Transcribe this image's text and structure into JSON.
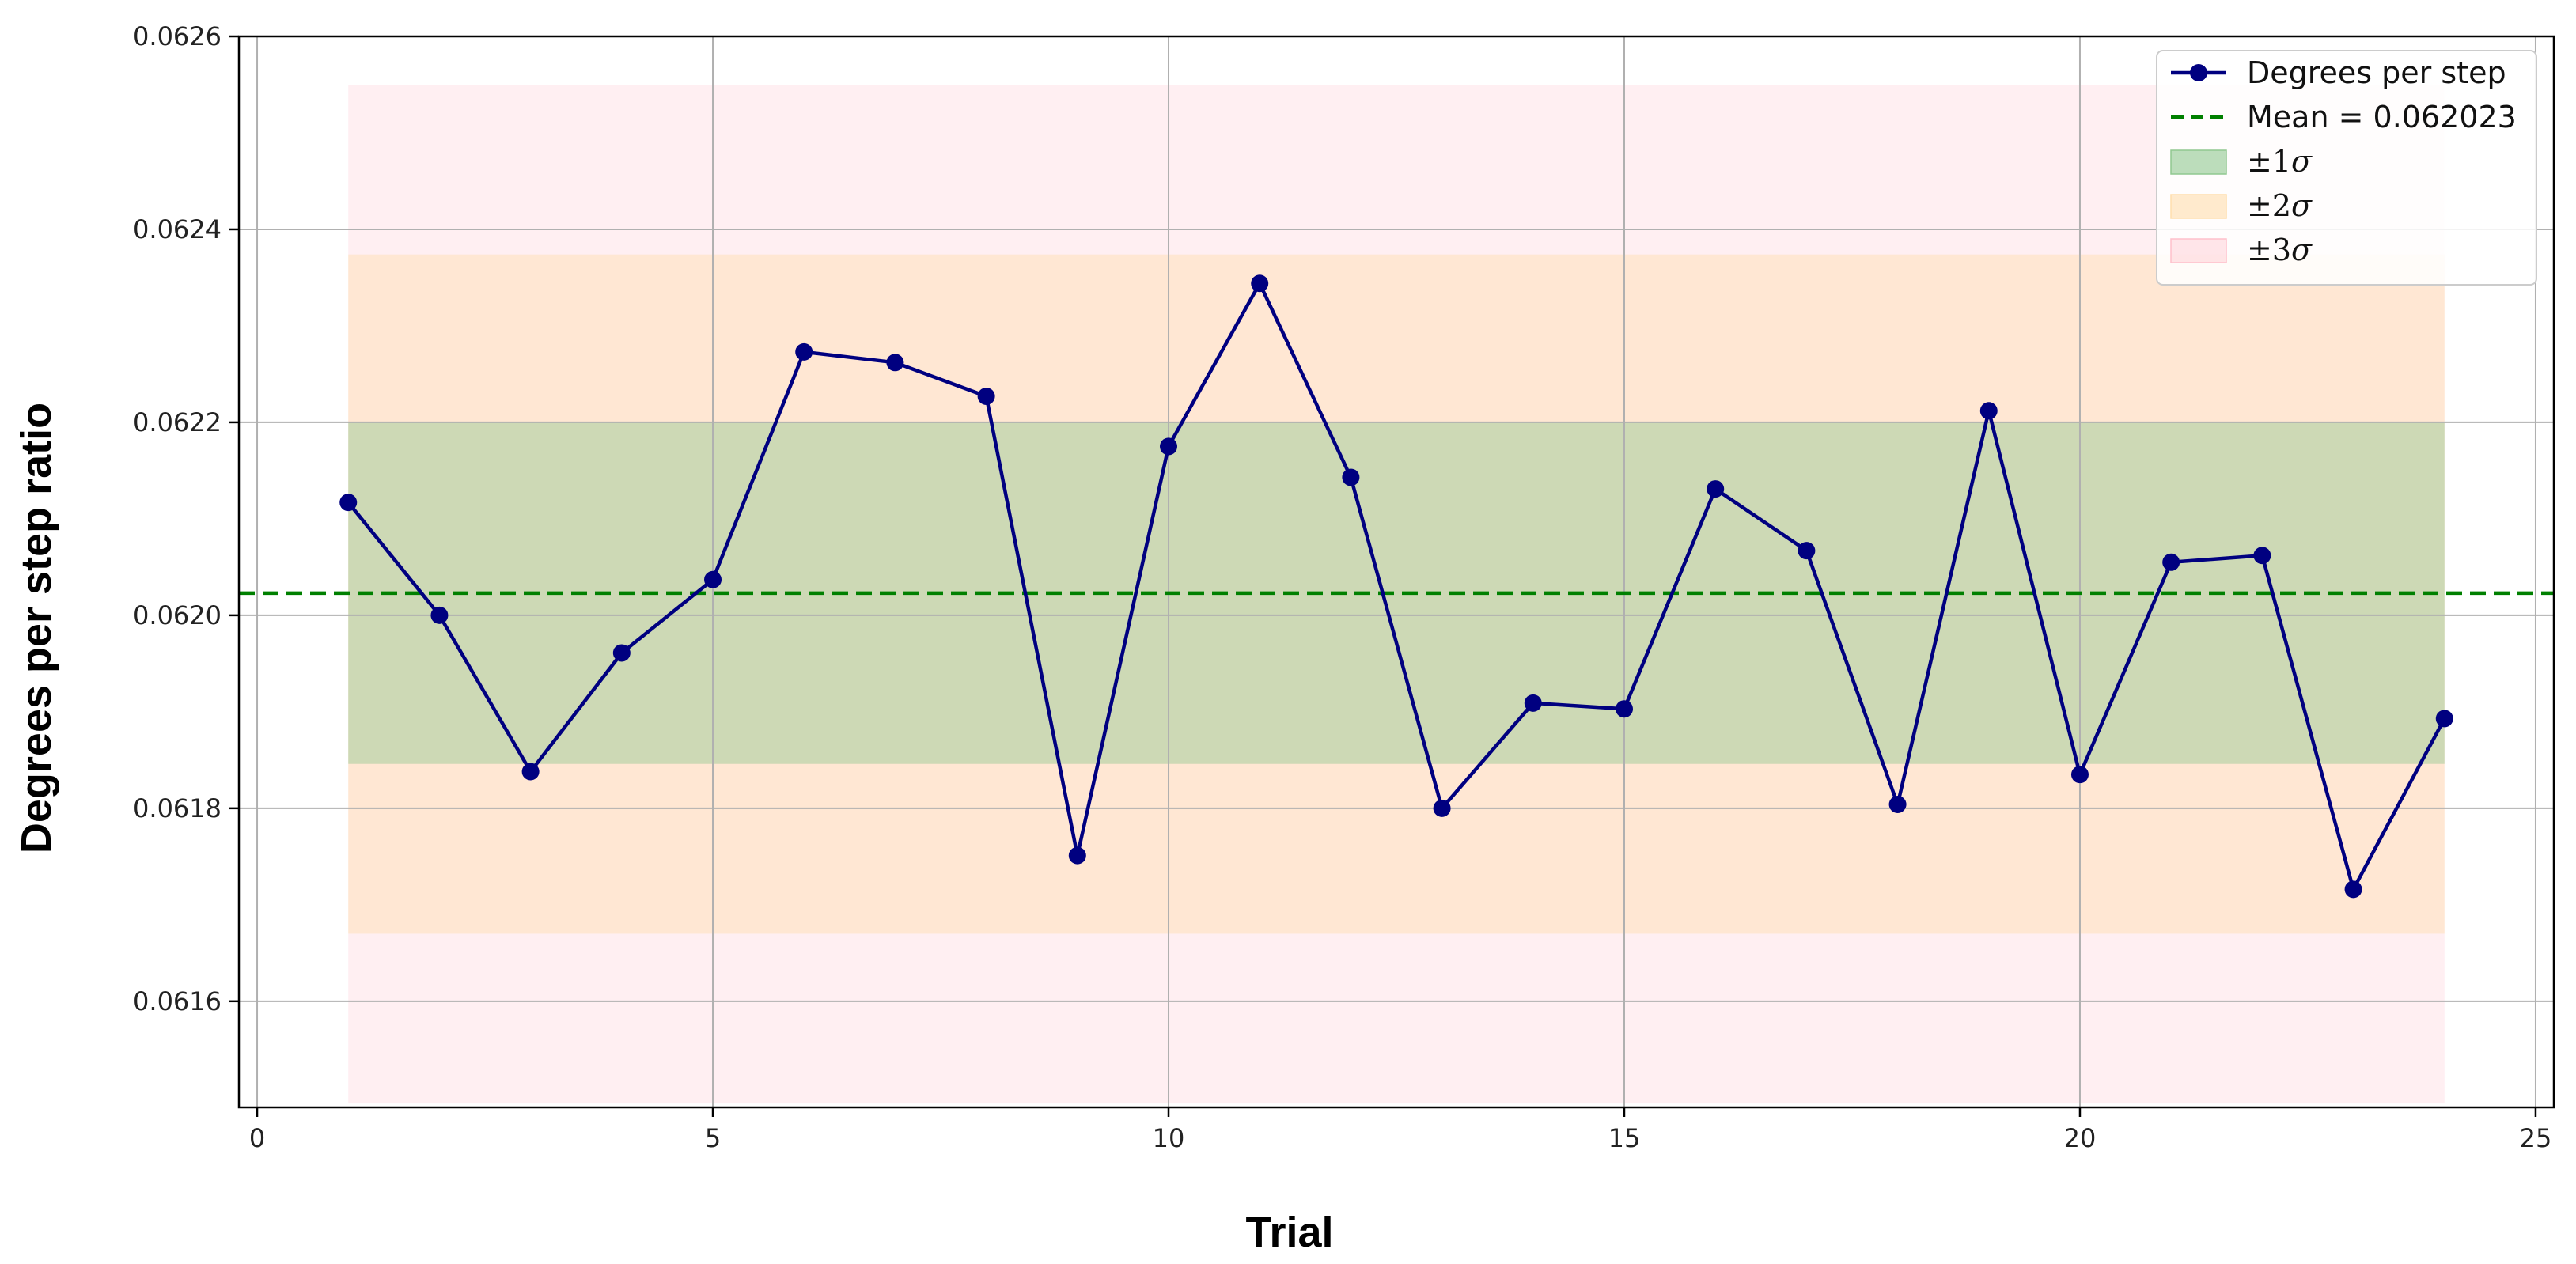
{
  "chart_data": {
    "type": "line",
    "title": "",
    "xlabel": "Trial",
    "ylabel": "Degrees per step ratio",
    "xlim": [
      -0.2,
      25.2
    ],
    "ylim": [
      0.06149,
      0.0626
    ],
    "x_ticks": [
      0,
      5,
      10,
      15,
      20,
      25
    ],
    "y_ticks": [
      0.0616,
      0.0618,
      0.062,
      0.0622,
      0.0624,
      0.0626
    ],
    "y_tick_labels": [
      "0.0616",
      "0.0618",
      "0.0620",
      "0.0622",
      "0.0624",
      "0.0626"
    ],
    "grid": true,
    "legend_position": "top-right",
    "x": [
      1,
      2,
      3,
      4,
      5,
      6,
      7,
      8,
      9,
      10,
      11,
      12,
      13,
      14,
      15,
      16,
      17,
      18,
      19,
      20,
      21,
      22,
      23,
      24
    ],
    "series": [
      {
        "name": "Degrees per step",
        "color": "#000080",
        "values": [
          0.062117,
          0.062,
          0.061838,
          0.061961,
          0.062037,
          0.062273,
          0.062262,
          0.062227,
          0.061751,
          0.062175,
          0.062344,
          0.062143,
          0.0618,
          0.061909,
          0.061903,
          0.062131,
          0.062067,
          0.061804,
          0.062212,
          0.061835,
          0.062055,
          0.062062,
          0.061716,
          0.061893
        ]
      }
    ],
    "mean": {
      "label": "Mean = 0.062023",
      "value": 0.062023,
      "color": "#008000"
    },
    "bands": [
      {
        "label": "±3σ",
        "symbol": "±3",
        "sigma_char": "σ",
        "low": 0.061494,
        "high": 0.06255,
        "x_range": [
          1,
          24
        ],
        "color": "#ffc0cb",
        "opacity": 0.25
      },
      {
        "label": "±2σ",
        "symbol": "±2",
        "sigma_char": "σ",
        "low": 0.06167,
        "high": 0.062374,
        "x_range": [
          1,
          24
        ],
        "color": "#ffdead",
        "opacity": 0.45
      },
      {
        "label": "±1σ",
        "symbol": "±1",
        "sigma_char": "σ",
        "low": 0.061846,
        "high": 0.0622,
        "x_range": [
          1,
          24
        ],
        "color": "#90c890",
        "opacity": 0.45
      }
    ]
  }
}
